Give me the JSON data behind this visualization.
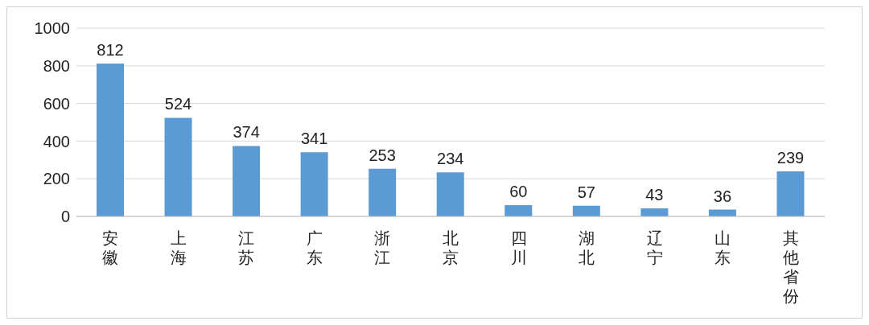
{
  "chart_data": {
    "type": "bar",
    "categories": [
      "安徽",
      "上海",
      "江苏",
      "广东",
      "浙江",
      "北京",
      "四川",
      "湖北",
      "辽宁",
      "山东",
      "其他省份"
    ],
    "values": [
      812,
      524,
      374,
      341,
      253,
      234,
      60,
      57,
      43,
      36,
      239
    ],
    "color": "#5b9bd5",
    "ylim": [
      0,
      1000
    ],
    "yticks": [
      0,
      200,
      400,
      600,
      800,
      1000
    ],
    "grid": "y",
    "data_labels": true,
    "legend": false
  }
}
